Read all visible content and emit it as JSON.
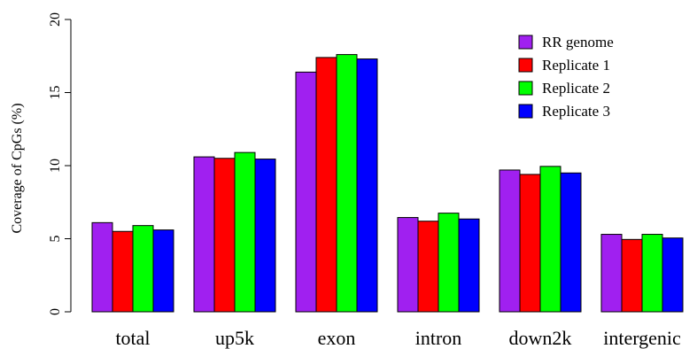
{
  "chart_data": {
    "type": "bar",
    "title": "",
    "xlabel": "",
    "ylabel": "Coverage of CpGs (%)",
    "ylim": [
      0,
      20
    ],
    "yticks": [
      0,
      5,
      10,
      15,
      20
    ],
    "categories": [
      "total",
      "up5k",
      "exon",
      "intron",
      "down2k",
      "intergenic"
    ],
    "series": [
      {
        "name": "RR genome",
        "color": "#a020f0",
        "values": [
          6.1,
          10.6,
          16.4,
          6.45,
          9.7,
          5.3
        ]
      },
      {
        "name": "Replicate 1",
        "color": "#ff0000",
        "values": [
          5.5,
          10.5,
          17.4,
          6.2,
          9.4,
          4.95
        ]
      },
      {
        "name": "Replicate 2",
        "color": "#00ff00",
        "values": [
          5.9,
          10.9,
          17.6,
          6.75,
          9.95,
          5.3
        ]
      },
      {
        "name": "Replicate 3",
        "color": "#0000ff",
        "values": [
          5.6,
          10.45,
          17.3,
          6.35,
          9.5,
          5.05
        ]
      }
    ],
    "legend_position": "top-right",
    "grid": false
  }
}
